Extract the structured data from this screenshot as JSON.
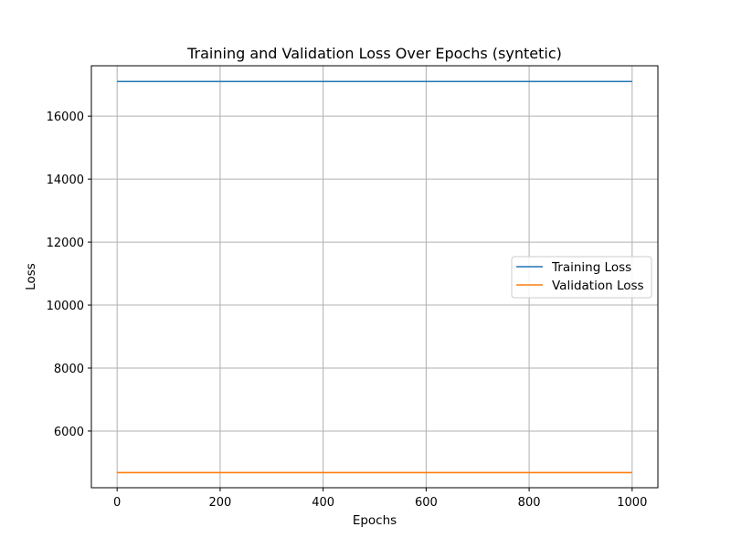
{
  "chart_data": {
    "type": "line",
    "title": "Training and Validation Loss Over Epochs (syntetic)",
    "xlabel": "Epochs",
    "ylabel": "Loss",
    "xlim": [
      -50,
      1050
    ],
    "ylim": [
      4200,
      17600
    ],
    "xticks": [
      0,
      200,
      400,
      600,
      800,
      1000
    ],
    "yticks": [
      6000,
      8000,
      10000,
      12000,
      14000,
      16000
    ],
    "grid": true,
    "legend_position": "center-right",
    "series": [
      {
        "name": "Training Loss",
        "color": "#1f77b4",
        "x": [
          0,
          1000
        ],
        "y": [
          17100,
          17100
        ]
      },
      {
        "name": "Validation Loss",
        "color": "#ff7f0e",
        "x": [
          0,
          1000
        ],
        "y": [
          4680,
          4680
        ]
      }
    ]
  }
}
